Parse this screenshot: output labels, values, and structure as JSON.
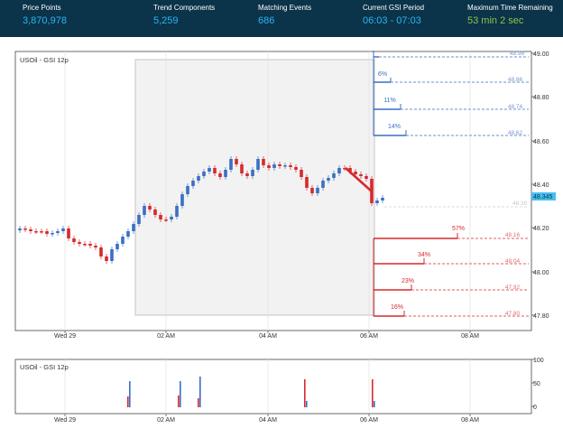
{
  "header": {
    "stats": [
      {
        "label": "Price Points",
        "value": "3,870,978",
        "color": "#29b6f6"
      },
      {
        "label": "Trend Components",
        "value": "5,259",
        "color": "#29b6f6"
      },
      {
        "label": "Matching Events",
        "value": "686",
        "color": "#29b6f6"
      },
      {
        "label": "Current GSI Period",
        "value": "06:03 - 07:03",
        "color": "#29b6f6"
      },
      {
        "label": "Maximum Time Remaining",
        "value": "53 min 2 sec",
        "color": "#8bc34a"
      }
    ]
  },
  "main_chart": {
    "legend": "USOil - GSI 12p",
    "current_price": "48.345",
    "y_ticks": [
      "49.00",
      "48.80",
      "48.60",
      "48.40",
      "48.20",
      "48.00",
      "47.80"
    ],
    "x_ticks": [
      "Wed 29",
      "02 AM",
      "04 AM",
      "06 AM",
      "08 AM"
    ],
    "up_targets": [
      {
        "pct": "",
        "price": "48.98"
      },
      {
        "pct": "6%",
        "price": "48.86"
      },
      {
        "pct": "11%",
        "price": "48.74"
      },
      {
        "pct": "14%",
        "price": "48.62"
      }
    ],
    "mid_level": "48.30",
    "down_targets": [
      {
        "pct": "57%",
        "price": "48.16"
      },
      {
        "pct": "34%",
        "price": "48.04"
      },
      {
        "pct": "23%",
        "price": "47.92"
      },
      {
        "pct": "16%",
        "price": "47.80"
      }
    ],
    "colors": {
      "up": "#3a6fc4",
      "down": "#d8282c",
      "highlight": "#f2f2f2",
      "price_tag": "#45c0f0"
    }
  },
  "volume_chart": {
    "legend": "USOil - GSI 12p",
    "y_ticks": [
      "100",
      "50",
      "0"
    ],
    "x_ticks": [
      "Wed 29",
      "02 AM",
      "04 AM",
      "06 AM",
      "08 AM"
    ]
  }
}
